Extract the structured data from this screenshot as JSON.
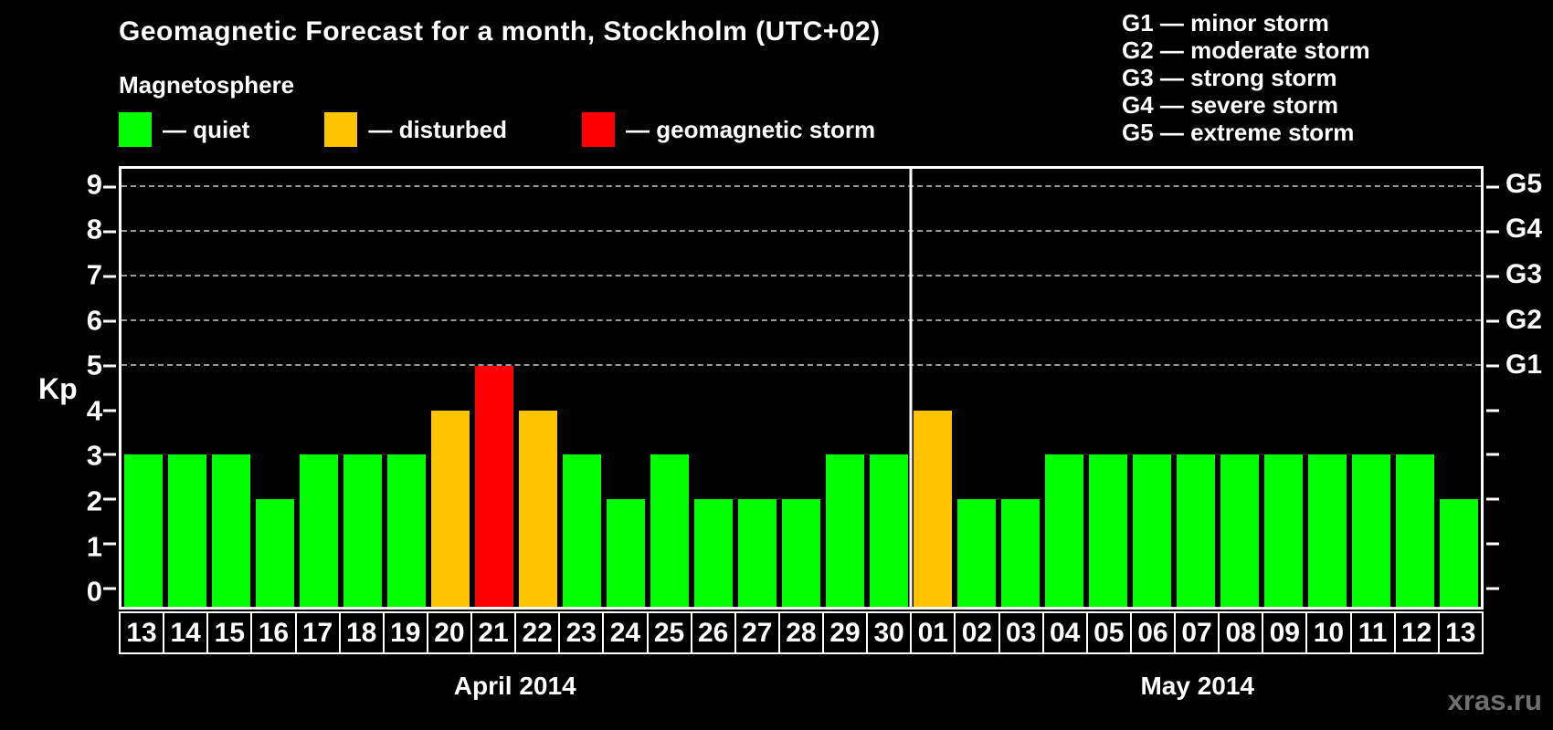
{
  "header": {
    "title": "Geomagnetic Forecast for a month, Stockholm (UTC+02)",
    "subtitle": "Magnetosphere"
  },
  "legend": {
    "items": [
      {
        "key": "quiet",
        "swatch_color": "#00ff00",
        "label": "— quiet"
      },
      {
        "key": "disturbed",
        "swatch_color": "#ffc400",
        "label": "— disturbed"
      },
      {
        "key": "storm",
        "swatch_color": "#ff0000",
        "label": "— geomagnetic storm"
      }
    ]
  },
  "storm_scale_legend": {
    "lines": [
      "G1 — minor storm",
      "G2 — moderate storm",
      "G3 — strong storm",
      "G4 — severe storm",
      "G5 — extreme storm"
    ]
  },
  "watermark": "xras.ru",
  "chart_data": {
    "type": "bar",
    "title": "Geomagnetic Forecast for a month, Stockholm (UTC+02)",
    "ylabel": "Kp",
    "ylim": [
      -0.4,
      9.4
    ],
    "yticks": [
      0,
      1,
      2,
      3,
      4,
      5,
      6,
      7,
      8,
      9
    ],
    "gridlines": [
      5,
      6,
      7,
      8,
      9
    ],
    "grid_style": "dashed",
    "legend_position": "top-left",
    "level_colors": {
      "quiet": "#00ff00",
      "disturbed": "#ffc400",
      "storm": "#ff0000"
    },
    "right_axis_labels": [
      {
        "value": 5,
        "text": "G1"
      },
      {
        "value": 6,
        "text": "G2"
      },
      {
        "value": 7,
        "text": "G3"
      },
      {
        "value": 8,
        "text": "G4"
      },
      {
        "value": 9,
        "text": "G5"
      }
    ],
    "months": [
      {
        "label": "April 2014",
        "days": [
          {
            "date": "13",
            "kp": 3,
            "level": "quiet"
          },
          {
            "date": "14",
            "kp": 3,
            "level": "quiet"
          },
          {
            "date": "15",
            "kp": 3,
            "level": "quiet"
          },
          {
            "date": "16",
            "kp": 2,
            "level": "quiet"
          },
          {
            "date": "17",
            "kp": 3,
            "level": "quiet"
          },
          {
            "date": "18",
            "kp": 3,
            "level": "quiet"
          },
          {
            "date": "19",
            "kp": 3,
            "level": "quiet"
          },
          {
            "date": "20",
            "kp": 4,
            "level": "disturbed"
          },
          {
            "date": "21",
            "kp": 5,
            "level": "storm"
          },
          {
            "date": "22",
            "kp": 4,
            "level": "disturbed"
          },
          {
            "date": "23",
            "kp": 3,
            "level": "quiet"
          },
          {
            "date": "24",
            "kp": 2,
            "level": "quiet"
          },
          {
            "date": "25",
            "kp": 3,
            "level": "quiet"
          },
          {
            "date": "26",
            "kp": 2,
            "level": "quiet"
          },
          {
            "date": "27",
            "kp": 2,
            "level": "quiet"
          },
          {
            "date": "28",
            "kp": 2,
            "level": "quiet"
          },
          {
            "date": "29",
            "kp": 3,
            "level": "quiet"
          },
          {
            "date": "30",
            "kp": 3,
            "level": "quiet"
          }
        ]
      },
      {
        "label": "May 2014",
        "days": [
          {
            "date": "01",
            "kp": 4,
            "level": "disturbed"
          },
          {
            "date": "02",
            "kp": 2,
            "level": "quiet"
          },
          {
            "date": "03",
            "kp": 2,
            "level": "quiet"
          },
          {
            "date": "04",
            "kp": 3,
            "level": "quiet"
          },
          {
            "date": "05",
            "kp": 3,
            "level": "quiet"
          },
          {
            "date": "06",
            "kp": 3,
            "level": "quiet"
          },
          {
            "date": "07",
            "kp": 3,
            "level": "quiet"
          },
          {
            "date": "08",
            "kp": 3,
            "level": "quiet"
          },
          {
            "date": "09",
            "kp": 3,
            "level": "quiet"
          },
          {
            "date": "10",
            "kp": 3,
            "level": "quiet"
          },
          {
            "date": "11",
            "kp": 3,
            "level": "quiet"
          },
          {
            "date": "12",
            "kp": 3,
            "level": "quiet"
          },
          {
            "date": "13",
            "kp": 2,
            "level": "quiet"
          }
        ]
      }
    ]
  }
}
